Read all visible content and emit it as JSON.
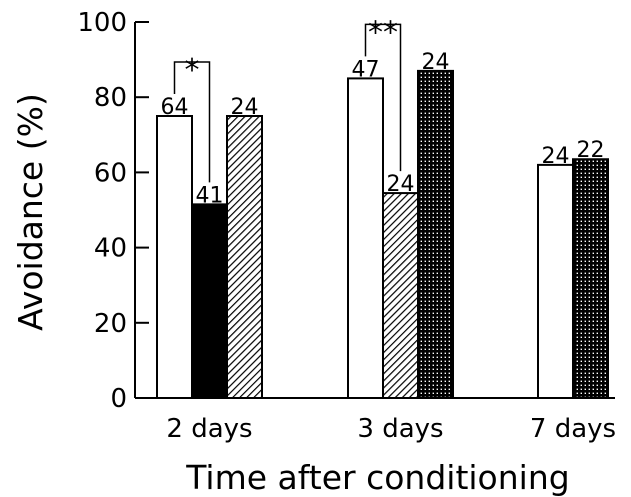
{
  "chart_data": {
    "type": "bar",
    "title": "",
    "xlabel": "Time after conditioning",
    "ylabel": "Avoidance (%)",
    "ylim": [
      0,
      100
    ],
    "yticks": [
      0,
      20,
      40,
      60,
      80,
      100
    ],
    "grid": false,
    "legend": "none",
    "groups": [
      {
        "label": "2 days",
        "bars": [
          {
            "value": 75,
            "n": "64",
            "pattern": "white"
          },
          {
            "value": 51.5,
            "n": "41",
            "pattern": "black"
          },
          {
            "value": 75,
            "n": "24",
            "pattern": "hatched"
          }
        ]
      },
      {
        "label": "3 days",
        "bars": [
          {
            "value": 85,
            "n": "47",
            "pattern": "white"
          },
          {
            "value": 54.5,
            "n": "24",
            "pattern": "hatched"
          },
          {
            "value": 87,
            "n": "24",
            "pattern": "dotted"
          }
        ]
      },
      {
        "label": "7 days",
        "bars": [
          {
            "value": 62,
            "n": "24",
            "pattern": "white"
          },
          {
            "value": 63.5,
            "n": "22",
            "pattern": "dotted"
          }
        ]
      }
    ],
    "significance": [
      {
        "label": "*",
        "group": 0,
        "from_bar": 0,
        "to_bar": 1
      },
      {
        "label": "**",
        "group": 1,
        "from_bar": 0,
        "to_bar": 1
      }
    ]
  }
}
